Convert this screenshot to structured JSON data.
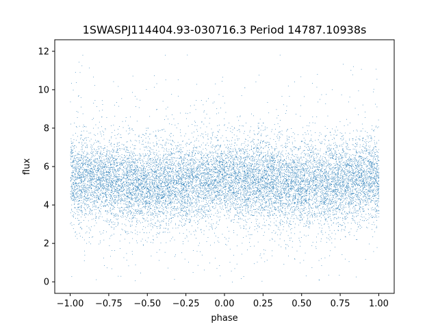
{
  "chart_data": {
    "type": "scatter",
    "title": "1SWASPJ114404.93-030716.3 Period 14787.10938s",
    "xlabel": "phase",
    "ylabel": "flux",
    "xlim": [
      -1.1,
      1.1
    ],
    "ylim": [
      -0.6,
      12.6
    ],
    "xticks": [
      -1.0,
      -0.75,
      -0.5,
      -0.25,
      0.0,
      0.25,
      0.5,
      0.75,
      1.0
    ],
    "xtick_labels": [
      "−1.00",
      "−0.75",
      "−0.50",
      "−0.25",
      "0.00",
      "0.25",
      "0.50",
      "0.75",
      "1.00"
    ],
    "yticks": [
      0,
      2,
      4,
      6,
      8,
      10,
      12
    ],
    "ytick_labels": [
      "0",
      "2",
      "4",
      "6",
      "8",
      "10",
      "12"
    ],
    "grid": false,
    "point_color": "#1f77b4",
    "series": [
      {
        "phase_range": [
          -1.0,
          1.0
        ],
        "flux_median_profile": [
          {
            "phase": -1.0,
            "flux": 5.4
          },
          {
            "phase": -0.75,
            "flux": 5.3
          },
          {
            "phase": -0.5,
            "flux": 5.0
          },
          {
            "phase": -0.25,
            "flux": 5.2
          },
          {
            "phase": 0.0,
            "flux": 5.4
          },
          {
            "phase": 0.25,
            "flux": 5.3
          },
          {
            "phase": 0.5,
            "flux": 5.0
          },
          {
            "phase": 0.75,
            "flux": 5.2
          },
          {
            "phase": 1.0,
            "flux": 5.4
          }
        ],
        "flux_core_band": [
          3.5,
          7.2
        ],
        "flux_extent": [
          0.0,
          12.0
        ]
      }
    ]
  }
}
